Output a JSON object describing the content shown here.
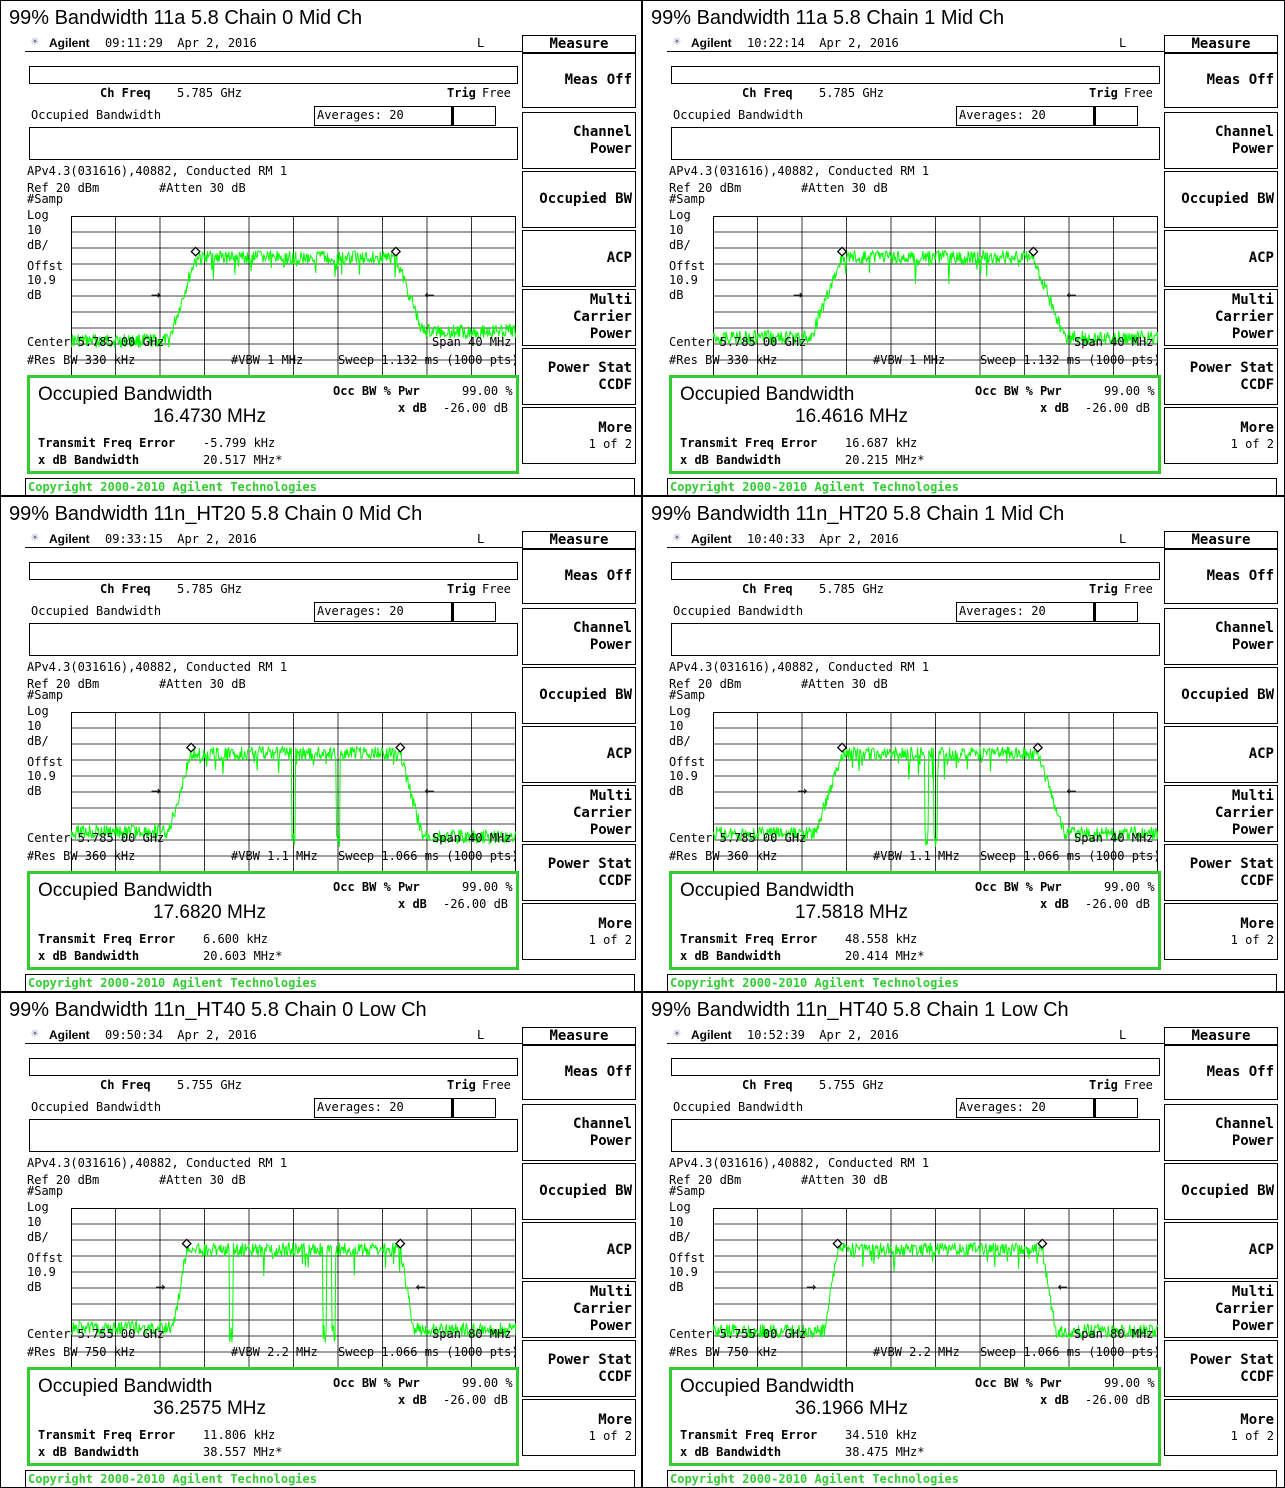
{
  "common": {
    "brand": "Agilent",
    "status_flag": "L",
    "ch_freq_label": "Ch Freq",
    "trig_label": "Trig",
    "trig_value": "Free",
    "meas_name": "Occupied Bandwidth",
    "averages": "Averages: 20",
    "info_line": "APv4.3(031616),40882, Conducted RM 1",
    "ref": "Ref 20 dBm",
    "atten": "#Atten 30 dB",
    "y_labels": [
      "#Samp",
      "Log",
      "10",
      "dB/",
      "Offst",
      "10.9",
      "dB"
    ],
    "result_title": "Occupied Bandwidth",
    "occ_pwr_label": "Occ BW % Pwr",
    "occ_pwr_value": "99.00 %",
    "xdb_label": "x dB",
    "xdb_value": "-26.00 dB",
    "tfe_label": "Transmit Freq Error",
    "xdbbw_label": "x dB Bandwidth",
    "copyright": "Copyright 2000-2010 Agilent Technologies",
    "softkey_header": "Measure",
    "softkeys": [
      {
        "line1": "Meas Off",
        "line2": ""
      },
      {
        "line1": "Channel Power",
        "line2": ""
      },
      {
        "line1": "Occupied BW",
        "line2": ""
      },
      {
        "line1": "ACP",
        "line2": ""
      },
      {
        "line1": "Multi Carrier",
        "line2": "Power"
      },
      {
        "line1": "Power Stat",
        "line2": "CCDF"
      },
      {
        "line1": "More",
        "line2": "1 of 2"
      }
    ],
    "trace_color": "#00ff00",
    "result_border_color": "#32cd32",
    "copyright_color": "#32cd32"
  },
  "panels": [
    {
      "title": "99% Bandwidth 11a 5.8 Chain 0 Mid Ch",
      "time": "09:11:29",
      "date": "Apr 2, 2016",
      "ch_freq": "5.785 GHz",
      "center": "Center 5.785 00 GHz",
      "span": "Span 40 MHz",
      "rbw": "#Res BW 330 kHz",
      "vbw": "#VBW 1 MHz",
      "sweep": "Sweep 1.132 ms (1000 pts)",
      "occ_bw": "16.4730 MHz",
      "tfe": "-5.799 kHz",
      "xdb_bw": "20.517 MHz*"
    },
    {
      "title": "99% Bandwidth 11a 5.8 Chain 1 Mid Ch",
      "time": "10:22:14",
      "date": "Apr 2, 2016",
      "ch_freq": "5.785 GHz",
      "center": "Center 5.785 00 GHz",
      "span": "Span 40 MHz",
      "rbw": "#Res BW 330 kHz",
      "vbw": "#VBW 1 MHz",
      "sweep": "Sweep 1.132 ms (1000 pts)",
      "occ_bw": "16.4616 MHz",
      "tfe": "16.687 kHz",
      "xdb_bw": "20.215 MHz*"
    },
    {
      "title": "99% Bandwidth 11n_HT20 5.8 Chain 0 Mid Ch",
      "time": "09:33:15",
      "date": "Apr 2, 2016",
      "ch_freq": "5.785 GHz",
      "center": "Center 5.785 00 GHz",
      "span": "Span 40 MHz",
      "rbw": "#Res BW 360 kHz",
      "vbw": "#VBW 1.1 MHz",
      "sweep": "Sweep 1.066 ms (1000 pts)",
      "occ_bw": "17.6820 MHz",
      "tfe": "6.600 kHz",
      "xdb_bw": "20.603 MHz*"
    },
    {
      "title": "99% Bandwidth 11n_HT20 5.8 Chain 1 Mid Ch",
      "time": "10:40:33",
      "date": "Apr 2, 2016",
      "ch_freq": "5.785 GHz",
      "center": "Center 5.785 00 GHz",
      "span": "Span 40 MHz",
      "rbw": "#Res BW 360 kHz",
      "vbw": "#VBW 1.1 MHz",
      "sweep": "Sweep 1.066 ms (1000 pts)",
      "occ_bw": "17.5818 MHz",
      "tfe": "48.558 kHz",
      "xdb_bw": "20.414 MHz*"
    },
    {
      "title": "99% Bandwidth 11n_HT40 5.8 Chain 0 Low Ch",
      "time": "09:50:34",
      "date": "Apr 2, 2016",
      "ch_freq": "5.755 GHz",
      "center": "Center 5.755 00 GHz",
      "span": "Span 80 MHz",
      "rbw": "#Res BW 750 kHz",
      "vbw": "#VBW 2.2 MHz",
      "sweep": "Sweep 1.066 ms (1000 pts)",
      "occ_bw": "36.2575 MHz",
      "tfe": "11.806 kHz",
      "xdb_bw": "38.557 MHz*"
    },
    {
      "title": "99% Bandwidth 11n_HT40 5.8 Chain 1 Low Ch",
      "time": "10:52:39",
      "date": "Apr 2, 2016",
      "ch_freq": "5.755 GHz",
      "center": "Center 5.755 00 GHz",
      "span": "Span 80 MHz",
      "rbw": "#Res BW 750 kHz",
      "vbw": "#VBW 2.2 MHz",
      "sweep": "Sweep 1.066 ms (1000 pts)",
      "occ_bw": "36.1966 MHz",
      "tfe": "34.510 kHz",
      "xdb_bw": "38.475 MHz*"
    }
  ]
}
